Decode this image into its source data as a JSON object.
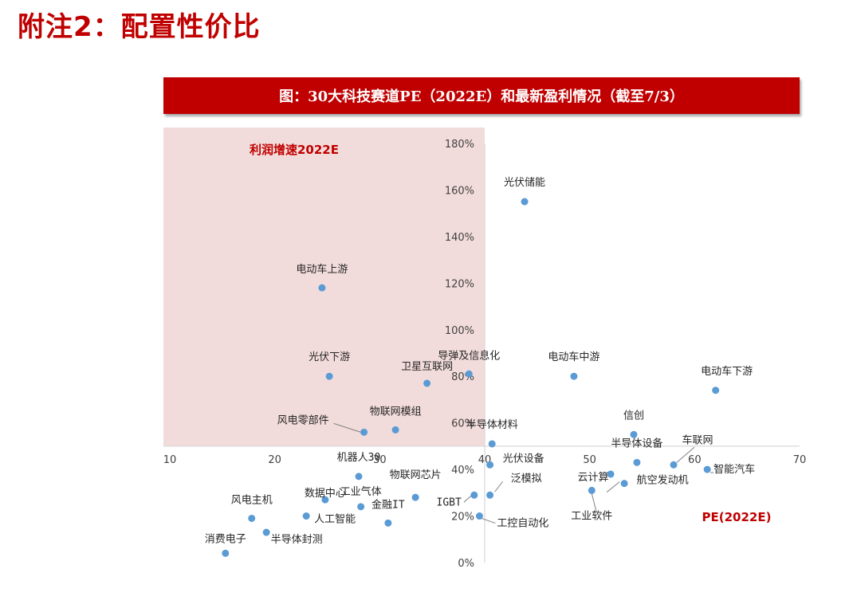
{
  "page": {
    "heading": "附注2：配置性价比",
    "banner_title": "图：30大科技赛道PE（2022E）和最新盈利情况（截至7/3）"
  },
  "chart_data": {
    "type": "scatter",
    "title": "图：30大科技赛道PE（2022E）和最新盈利情况（截至7/3）",
    "xlabel": "PE(2022E)",
    "ylabel": "利润增速2022E",
    "xlim": [
      10,
      70
    ],
    "ylim": [
      0,
      1.8
    ],
    "x_ticks": [
      "10",
      "20",
      "30",
      "40",
      "50",
      "60",
      "70"
    ],
    "y_ticks": [
      "0%",
      "20%",
      "40%",
      "60%",
      "80%",
      "100%",
      "120%",
      "140%",
      "160%",
      "180%"
    ],
    "x_axis_crosses_y_at": 0.5,
    "y_axis_crosses_x_at": 40,
    "highlight_region": {
      "x": [
        10,
        40
      ],
      "y": [
        0.5,
        1.8
      ]
    },
    "colors": {
      "point": "#5b9bd5",
      "highlight": "#f2dcdb",
      "accent": "#c00000"
    },
    "points": [
      {
        "name": "光伏储能",
        "x": 43.8,
        "y": 1.55
      },
      {
        "name": "电动车上游",
        "x": 24.5,
        "y": 1.18
      },
      {
        "name": "光伏下游",
        "x": 25.2,
        "y": 0.8
      },
      {
        "name": "卫星互联网",
        "x": 34.5,
        "y": 0.77
      },
      {
        "name": "导弹及信息化",
        "x": 38.5,
        "y": 0.81
      },
      {
        "name": "电动车中游",
        "x": 48.5,
        "y": 0.8
      },
      {
        "name": "电动车下游",
        "x": 62.0,
        "y": 0.74
      },
      {
        "name": "物联网模组",
        "x": 31.5,
        "y": 0.57
      },
      {
        "name": "风电零部件",
        "x": 28.5,
        "y": 0.56
      },
      {
        "name": "信创",
        "x": 54.2,
        "y": 0.55
      },
      {
        "name": "半导体材料",
        "x": 40.7,
        "y": 0.51
      },
      {
        "name": "车联网",
        "x": 58.0,
        "y": 0.42
      },
      {
        "name": "半导体设备",
        "x": 54.5,
        "y": 0.43
      },
      {
        "name": "光伏设备",
        "x": 40.5,
        "y": 0.42
      },
      {
        "name": "机器人30",
        "x": 28.0,
        "y": 0.37
      },
      {
        "name": "智能汽车",
        "x": 61.2,
        "y": 0.4
      },
      {
        "name": "云计算",
        "x": 52.0,
        "y": 0.38
      },
      {
        "name": "航空发动机",
        "x": 53.3,
        "y": 0.34
      },
      {
        "name": "数据中心",
        "x": 24.8,
        "y": 0.27
      },
      {
        "name": "物联网芯片",
        "x": 33.4,
        "y": 0.28
      },
      {
        "name": "工业软件",
        "x": 50.2,
        "y": 0.31
      },
      {
        "name": "泛模拟",
        "x": 40.5,
        "y": 0.29
      },
      {
        "name": "IGBT",
        "x": 39.0,
        "y": 0.29
      },
      {
        "name": "工业气体",
        "x": 28.2,
        "y": 0.24
      },
      {
        "name": "金融IT",
        "x": 30.8,
        "y": 0.17
      },
      {
        "name": "风电主机",
        "x": 17.8,
        "y": 0.19
      },
      {
        "name": "人工智能",
        "x": 23.0,
        "y": 0.2
      },
      {
        "name": "工控自动化",
        "x": 39.5,
        "y": 0.2
      },
      {
        "name": "消费电子",
        "x": 15.3,
        "y": 0.04
      },
      {
        "name": "半导体封测",
        "x": 19.2,
        "y": 0.13
      }
    ]
  }
}
